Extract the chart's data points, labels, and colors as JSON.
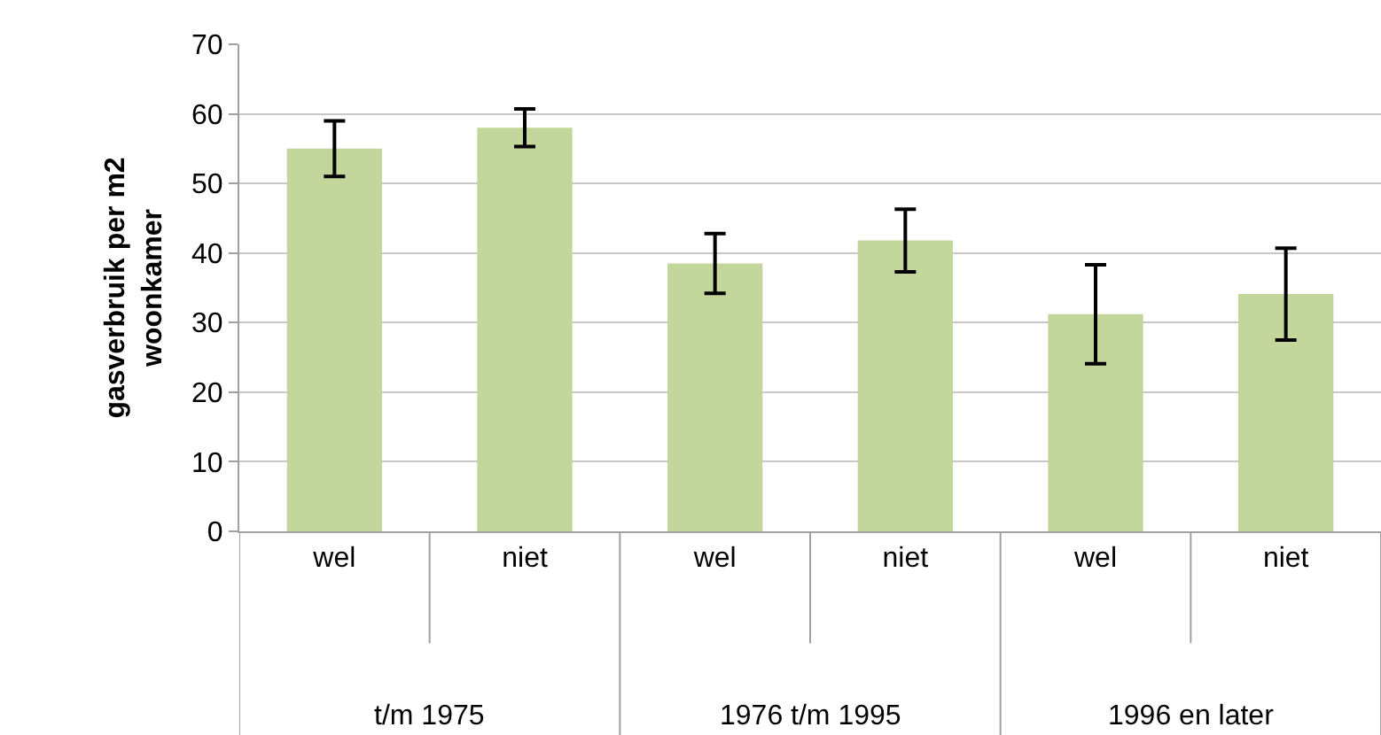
{
  "chart_data": {
    "type": "bar",
    "ylabel": "gasverbruik per m2\nwoonkamer",
    "categories": [
      "wel",
      "niet",
      "wel",
      "niet",
      "wel",
      "niet"
    ],
    "values": [
      55.0,
      58.0,
      38.5,
      41.8,
      31.2,
      34.1
    ],
    "errors": [
      4.0,
      2.7,
      4.3,
      4.5,
      7.1,
      6.6
    ],
    "color": "#c3d69b",
    "annotations": [
      "t/m 1975",
      "1976 t/m 1995",
      "1996 en later"
    ],
    "ylim": [
      0,
      70
    ],
    "yticks": [
      0,
      10,
      20,
      30,
      40,
      50,
      60,
      70
    ],
    "grid": "y"
  }
}
